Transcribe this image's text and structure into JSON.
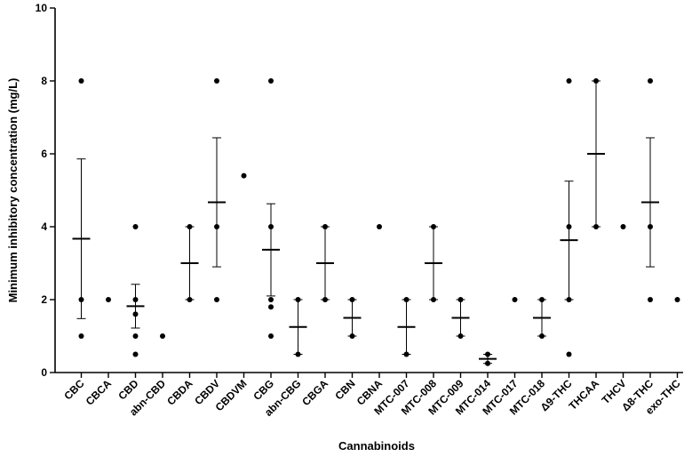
{
  "chart_data": {
    "type": "scatter",
    "title": "",
    "xlabel": "Cannabinoids",
    "ylabel": "Minimum inhibitory concentration (mg/L)",
    "ylim": [
      0,
      10
    ],
    "yticks": [
      0,
      2,
      4,
      6,
      8,
      10
    ],
    "grid": false,
    "categories": [
      "CBC",
      "CBCA",
      "CBD",
      "abn-CBD",
      "CBDA",
      "CBDV",
      "CBDVM",
      "CBG",
      "abn-CBG",
      "CBGA",
      "CBN",
      "CBNA",
      "MTC-007",
      "MTC-008",
      "MTC-009",
      "MTC-014",
      "MTC-017",
      "MTC-018",
      "Δ9-THC",
      "THCAA",
      "THCV",
      "Δ8-THC",
      "exo-THC"
    ],
    "groups": [
      {
        "name": "CBC",
        "points": [
          8,
          2,
          1
        ],
        "mean": 3.67,
        "error": [
          1.48,
          5.86
        ]
      },
      {
        "name": "CBCA",
        "points": [
          2
        ]
      },
      {
        "name": "CBD",
        "points": [
          4,
          2,
          1.6,
          1,
          0.5
        ],
        "mean": 1.82,
        "error": [
          1.22,
          2.42
        ]
      },
      {
        "name": "abn-CBD",
        "points": [
          1
        ]
      },
      {
        "name": "CBDA",
        "points": [
          4,
          2
        ],
        "mean": 3,
        "error": [
          2,
          4
        ]
      },
      {
        "name": "CBDV",
        "points": [
          8,
          4,
          2
        ],
        "mean": 4.67,
        "error": [
          2.9,
          6.44
        ]
      },
      {
        "name": "CBDVM",
        "points": [
          5.4
        ]
      },
      {
        "name": "CBG",
        "points": [
          8,
          4,
          2,
          1.8,
          1
        ],
        "mean": 3.37,
        "error": [
          2.1,
          4.63
        ]
      },
      {
        "name": "abn-CBG",
        "points": [
          2,
          0.5
        ],
        "mean": 1.25,
        "error": [
          0.5,
          2
        ]
      },
      {
        "name": "CBGA",
        "points": [
          4,
          2
        ],
        "mean": 3,
        "error": [
          2,
          4
        ]
      },
      {
        "name": "CBN",
        "points": [
          2,
          1
        ],
        "mean": 1.5,
        "error": [
          1,
          2
        ]
      },
      {
        "name": "CBNA",
        "points": [
          4
        ]
      },
      {
        "name": "MTC-007",
        "points": [
          2,
          0.5
        ],
        "mean": 1.25,
        "error": [
          0.5,
          2
        ]
      },
      {
        "name": "MTC-008",
        "points": [
          4,
          2
        ],
        "mean": 3,
        "error": [
          2,
          4
        ]
      },
      {
        "name": "MTC-009",
        "points": [
          2,
          1
        ],
        "mean": 1.5,
        "error": [
          1,
          2
        ]
      },
      {
        "name": "MTC-014",
        "points": [
          0.5,
          0.25
        ],
        "mean": 0.375,
        "error": [
          0.25,
          0.5
        ]
      },
      {
        "name": "MTC-017",
        "points": [
          2
        ]
      },
      {
        "name": "MTC-018",
        "points": [
          2,
          1
        ],
        "mean": 1.5,
        "error": [
          1,
          2
        ]
      },
      {
        "name": "Δ9-THC",
        "points": [
          8,
          4,
          2,
          0.5
        ],
        "mean": 3.63,
        "error": [
          2,
          5.25
        ]
      },
      {
        "name": "THCAA",
        "points": [
          8,
          4
        ],
        "mean": 6,
        "error": [
          4,
          8
        ]
      },
      {
        "name": "THCV",
        "points": [
          4
        ]
      },
      {
        "name": "Δ8-THC",
        "points": [
          8,
          4,
          2
        ],
        "mean": 4.67,
        "error": [
          2.9,
          6.44
        ]
      },
      {
        "name": "exo-THC",
        "points": [
          2
        ]
      }
    ]
  }
}
